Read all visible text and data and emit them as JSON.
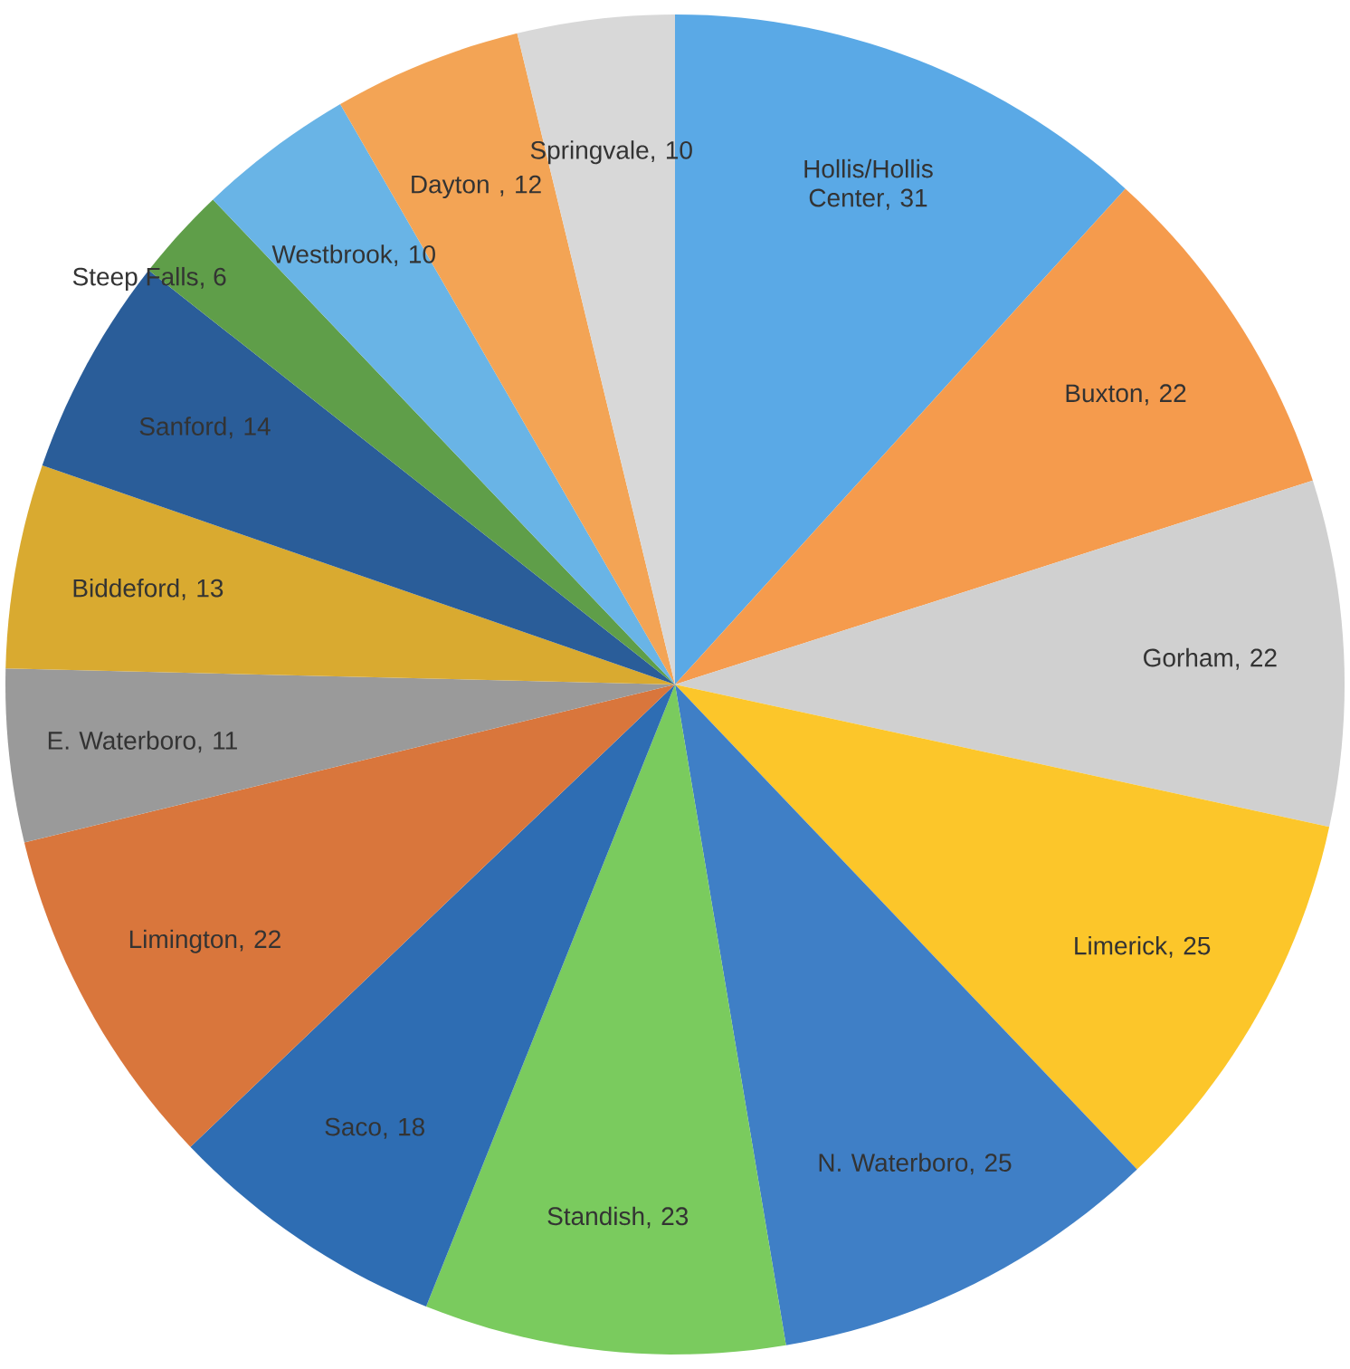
{
  "chart_data": {
    "type": "pie",
    "categories": [
      "Hollis/Hollis Center",
      "Buxton",
      "Gorham",
      "Limerick",
      "N. Waterboro",
      "Standish",
      "Saco",
      "Limington",
      "E. Waterboro",
      "Biddeford",
      "Sanford",
      "Steep Falls",
      "Westbrook",
      "Dayton ",
      "Springvale"
    ],
    "values": [
      31,
      22,
      22,
      25,
      25,
      23,
      18,
      22,
      11,
      13,
      14,
      6,
      10,
      12,
      10
    ],
    "value_labels": [
      ", 31",
      ", 22",
      ", 22",
      ", 25",
      ", 25",
      ", 23",
      ", 18",
      ", 22",
      ", 11",
      ", 13",
      ", 14",
      ", 6",
      ", 10",
      ", 12",
      ", 10"
    ],
    "colors": [
      "#5aa9e6",
      "#f59b4d",
      "#d0d0d0",
      "#fcc62a",
      "#3f7fc6",
      "#7acb5e",
      "#2e6db3",
      "#d9763c",
      "#9a9a9a",
      "#d9aa30",
      "#2a5d99",
      "#5f9e49",
      "#69b4e6",
      "#f3a455",
      "#d8d8d8"
    ]
  }
}
